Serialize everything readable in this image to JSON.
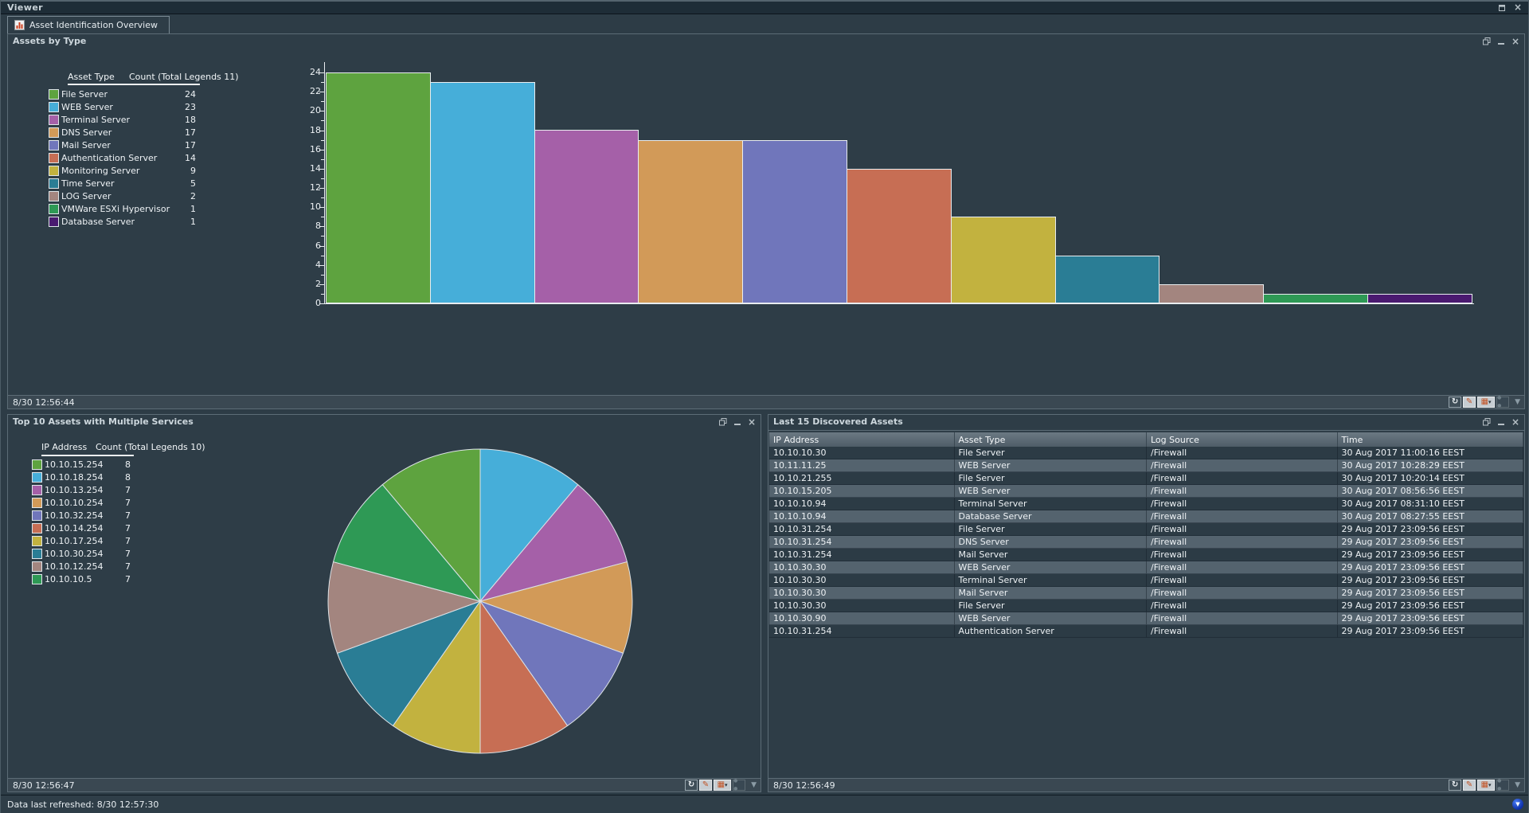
{
  "window": {
    "title": "Viewer"
  },
  "tab": {
    "label": "Asset Identification Overview"
  },
  "icons": {
    "close_glyph": "×",
    "minimize_glyph": "_",
    "refresh_glyph": "↻",
    "pencil_glyph": "✎",
    "grid_glyph": "▦",
    "caret_glyph": "▾",
    "dots_glyph": "● ●",
    "dropdown_glyph": "▼",
    "feed_glyph": "▼"
  },
  "panels": {
    "assets_by_type": {
      "title": "Assets by Type",
      "status_time": "8/30 12:56:44",
      "legend": {
        "col1": "Asset Type",
        "col2": "Count (Total Legends 11)",
        "items": [
          {
            "label": "File Server",
            "count": 24,
            "color": "#5ea33f"
          },
          {
            "label": "WEB Server",
            "count": 23,
            "color": "#46aed9"
          },
          {
            "label": "Terminal Server",
            "count": 18,
            "color": "#a560a8"
          },
          {
            "label": "DNS Server",
            "count": 17,
            "color": "#d29a58"
          },
          {
            "label": "Mail Server",
            "count": 17,
            "color": "#7076bb"
          },
          {
            "label": "Authentication Server",
            "count": 14,
            "color": "#c76e54"
          },
          {
            "label": "Monitoring Server",
            "count": 9,
            "color": "#c2b23f"
          },
          {
            "label": "Time Server",
            "count": 5,
            "color": "#2a7d95"
          },
          {
            "label": "LOG Server",
            "count": 2,
            "color": "#a3857f"
          },
          {
            "label": "VMWare ESXi Hypervisor",
            "count": 1,
            "color": "#2e9955"
          },
          {
            "label": "Database Server",
            "count": 1,
            "color": "#4a1a70"
          }
        ]
      },
      "chart": {
        "type": "bar",
        "y_min": 0,
        "y_max": 24,
        "y_label_step": 2
      }
    },
    "top10_multi_services": {
      "title": "Top 10 Assets with Multiple Services",
      "status_time": "8/30 12:56:47",
      "legend": {
        "col1": "IP Address",
        "col2": "Count (Total Legends 10)",
        "items": [
          {
            "label": "10.10.15.254",
            "count": 8,
            "color": "#5ea33f"
          },
          {
            "label": "10.10.18.254",
            "count": 8,
            "color": "#46aed9"
          },
          {
            "label": "10.10.13.254",
            "count": 7,
            "color": "#a560a8"
          },
          {
            "label": "10.10.10.254",
            "count": 7,
            "color": "#d29a58"
          },
          {
            "label": "10.10.32.254",
            "count": 7,
            "color": "#7076bb"
          },
          {
            "label": "10.10.14.254",
            "count": 7,
            "color": "#c76e54"
          },
          {
            "label": "10.10.17.254",
            "count": 7,
            "color": "#c2b23f"
          },
          {
            "label": "10.10.30.254",
            "count": 7,
            "color": "#2a7d95"
          },
          {
            "label": "10.10.12.254",
            "count": 7,
            "color": "#a3857f"
          },
          {
            "label": "10.10.10.5",
            "count": 7,
            "color": "#2e9955"
          }
        ]
      },
      "chart": {
        "type": "pie",
        "start_angle_deg": -40
      }
    },
    "last15_discovered": {
      "title": "Last 15 Discovered Assets",
      "status_time": "8/30 12:56:49",
      "columns": [
        "IP Address",
        "Asset Type",
        "Log Source",
        "Time"
      ],
      "rows": [
        [
          "10.10.10.30",
          "File Server",
          "/Firewall",
          "30 Aug 2017 11:00:16 EEST"
        ],
        [
          "10.11.11.25",
          "WEB Server",
          "/Firewall",
          "30 Aug 2017 10:28:29 EEST"
        ],
        [
          "10.10.21.255",
          "File Server",
          "/Firewall",
          "30 Aug 2017 10:20:14 EEST"
        ],
        [
          "10.10.15.205",
          "WEB Server",
          "/Firewall",
          "30 Aug 2017 08:56:56 EEST"
        ],
        [
          "10.10.10.94",
          "Terminal Server",
          "/Firewall",
          "30 Aug 2017 08:31:10 EEST"
        ],
        [
          "10.10.10.94",
          "Database Server",
          "/Firewall",
          "30 Aug 2017 08:27:55 EEST"
        ],
        [
          "10.10.31.254",
          "File Server",
          "/Firewall",
          "29 Aug 2017 23:09:56 EEST"
        ],
        [
          "10.10.31.254",
          "DNS Server",
          "/Firewall",
          "29 Aug 2017 23:09:56 EEST"
        ],
        [
          "10.10.31.254",
          "Mail Server",
          "/Firewall",
          "29 Aug 2017 23:09:56 EEST"
        ],
        [
          "10.10.30.30",
          "WEB Server",
          "/Firewall",
          "29 Aug 2017 23:09:56 EEST"
        ],
        [
          "10.10.30.30",
          "Terminal Server",
          "/Firewall",
          "29 Aug 2017 23:09:56 EEST"
        ],
        [
          "10.10.30.30",
          "Mail Server",
          "/Firewall",
          "29 Aug 2017 23:09:56 EEST"
        ],
        [
          "10.10.30.30",
          "File Server",
          "/Firewall",
          "29 Aug 2017 23:09:56 EEST"
        ],
        [
          "10.10.30.90",
          "WEB Server",
          "/Firewall",
          "29 Aug 2017 23:09:56 EEST"
        ],
        [
          "10.10.31.254",
          "Authentication Server",
          "/Firewall",
          "29 Aug 2017 23:09:56 EEST"
        ]
      ]
    }
  },
  "app_status": {
    "refreshed": "Data last refreshed: 8/30 12:57:30"
  }
}
